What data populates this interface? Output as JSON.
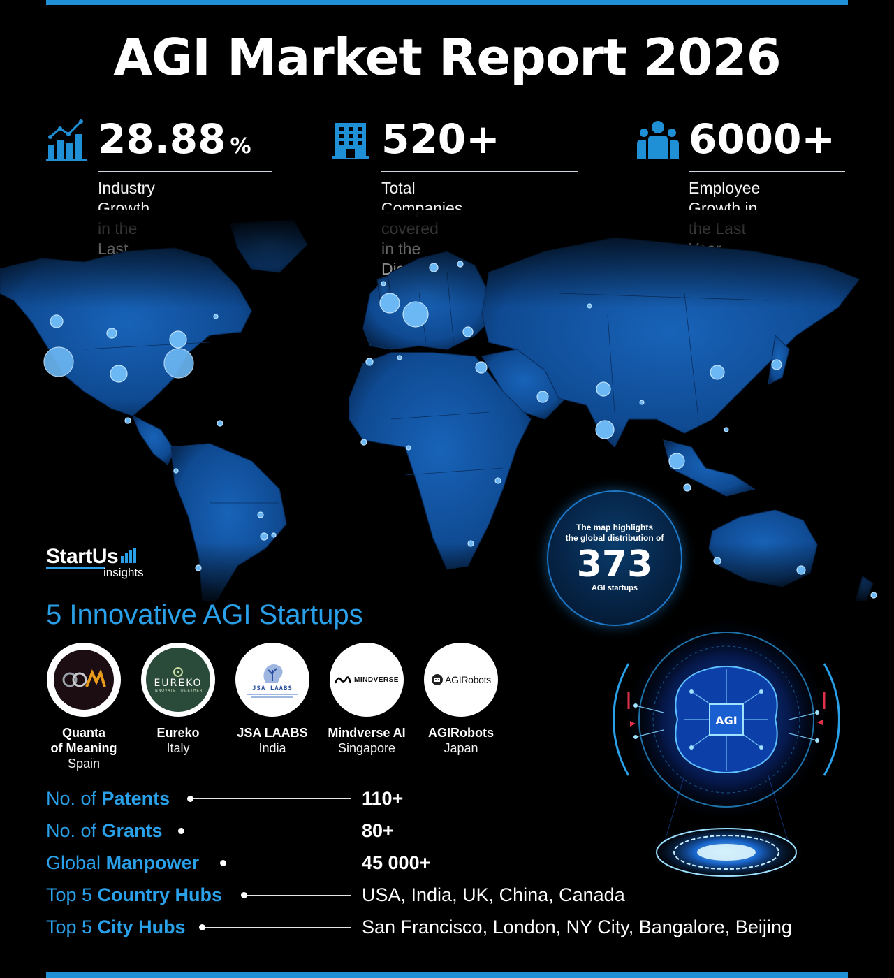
{
  "title": "AGI Market Report 2026",
  "stats": [
    {
      "icon": "growth-chart-icon",
      "value": "28.88",
      "unit": "%",
      "description": "Industry Growth in the\nLast Year"
    },
    {
      "icon": "building-icon",
      "value": "520+",
      "unit": "",
      "description": "Total Companies covered\nin the Discovery Platform"
    },
    {
      "icon": "people-icon",
      "value": "6000+",
      "unit": "",
      "description": "Employee Growth in\nthe Last Year"
    }
  ],
  "brand": {
    "name": "StartUs",
    "sub": "insights"
  },
  "map_badge": {
    "line1": "The map highlights\nthe global distribution of",
    "value": "373",
    "line2": "AGI startups"
  },
  "section_title": "5 Innovative AGI Startups",
  "startups": [
    {
      "name": "Quanta\nof Meaning",
      "country": "Spain",
      "logo_text": "QOM"
    },
    {
      "name": "Eureko",
      "country": "Italy",
      "logo_text": "EUREKO",
      "logo_tagline": "INNOVATE TOGETHER"
    },
    {
      "name": "JSA LAABS",
      "country": "India",
      "logo_text": "JSA LAABS"
    },
    {
      "name": "Mindverse AI",
      "country": "Singapore",
      "logo_text": "MINDVERSE"
    },
    {
      "name": "AGIRobots",
      "country": "Japan",
      "logo_text": "AGIRobots"
    }
  ],
  "metrics": [
    {
      "prefix": "No. of ",
      "bold": "Patents",
      "value": "110+"
    },
    {
      "prefix": "No. of ",
      "bold": "Grants",
      "value": "80+"
    },
    {
      "prefix": "Global ",
      "bold": "Manpower",
      "value": "45 000+"
    },
    {
      "prefix": "Top 5 ",
      "bold": "Country Hubs",
      "value": "USA, India, UK, China, Canada"
    },
    {
      "prefix": "Top 5 ",
      "bold": "City Hubs",
      "value": "San Francisco, London, NY City, Bangalore, Beijing"
    }
  ],
  "agi_label": "AGI",
  "colors": {
    "accent": "#2aa0e8",
    "map": "#114e9a",
    "bar": "#1f8fd6"
  }
}
